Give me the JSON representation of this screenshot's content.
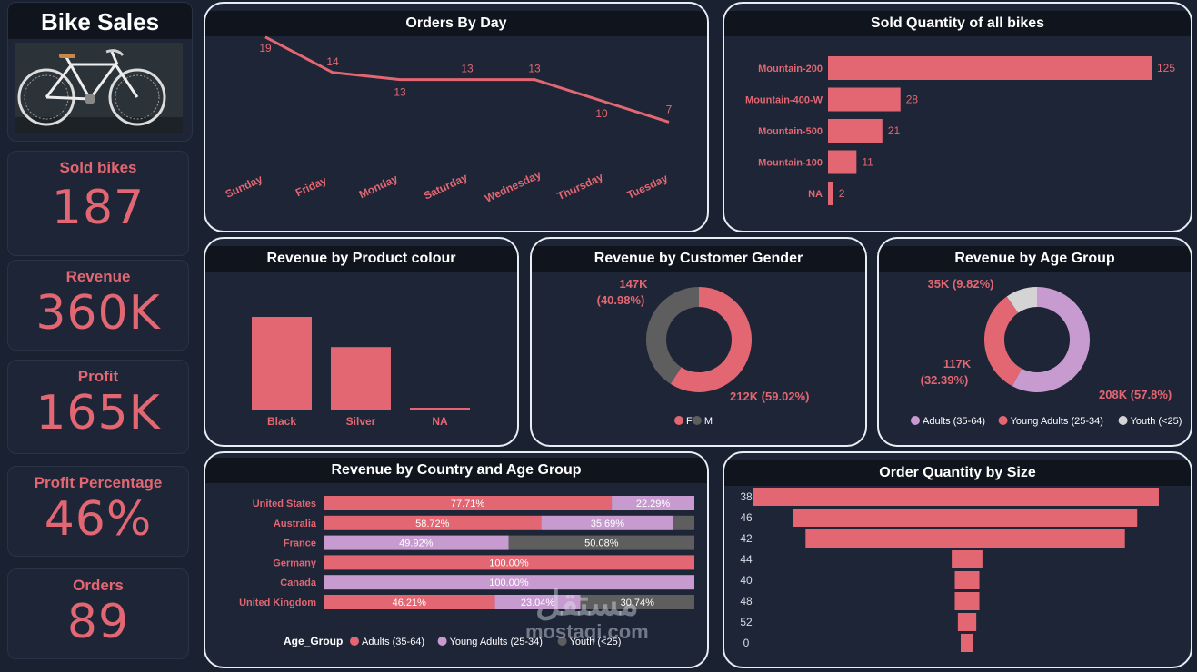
{
  "app": {
    "title": "Bike Sales"
  },
  "colors": {
    "accent": "#e26772",
    "lilac": "#c89bd0",
    "gray": "#5e5e5e",
    "light_gray": "#d4d4d4",
    "panel": "#1d2536"
  },
  "kpis": [
    {
      "label": "Sold bikes",
      "value": "187"
    },
    {
      "label": "Revenue",
      "value": "360K"
    },
    {
      "label": "Profit",
      "value": "165K"
    },
    {
      "label": "Profit Percentage",
      "value": "46%"
    },
    {
      "label": "Orders",
      "value": "89"
    }
  ],
  "watermark": {
    "arabic": "مستقل",
    "latin": "mostaqi.com"
  },
  "chart_data": [
    {
      "id": "orders_by_day",
      "type": "line",
      "title": "Orders By Day",
      "categories": [
        "Sunday",
        "Friday",
        "Monday",
        "Saturday",
        "Wednesday",
        "Thursday",
        "Tuesday"
      ],
      "values": [
        19,
        14,
        13,
        13,
        13,
        10,
        7
      ]
    },
    {
      "id": "sold_quantity",
      "type": "bar",
      "orientation": "horizontal",
      "title": "Sold Quantity of all bikes",
      "categories": [
        "Mountain-200",
        "Mountain-400-W",
        "Mountain-500",
        "Mountain-100",
        "NA"
      ],
      "values": [
        125,
        28,
        21,
        11,
        2
      ]
    },
    {
      "id": "revenue_by_colour",
      "type": "bar",
      "title": "Revenue by Product colour",
      "categories": [
        "Black",
        "Silver",
        "NA"
      ],
      "values": [
        215,
        145,
        2
      ]
    },
    {
      "id": "revenue_by_gender",
      "type": "pie",
      "title": "Revenue by Customer Gender",
      "labels": [
        "F",
        "M"
      ],
      "values": [
        212,
        147
      ],
      "data_labels": [
        "212K (59.02%)",
        "147K (40.98%)"
      ],
      "legend_position": "bottom"
    },
    {
      "id": "revenue_by_age",
      "type": "pie",
      "title": "Revenue by Age Group",
      "labels": [
        "Adults (35-64)",
        "Young Adults (25-34)",
        "Youth (<25)"
      ],
      "values": [
        208,
        117,
        35
      ],
      "data_labels": [
        "208K (57.8%)",
        "117K (32.39%)",
        "35K (9.82%)"
      ],
      "legend_position": "bottom"
    },
    {
      "id": "revenue_by_country",
      "type": "bar",
      "orientation": "horizontal",
      "stacked": "100%",
      "title": "Revenue by Country and Age Group",
      "legend_title": "Age_Group",
      "categories": [
        "United States",
        "Australia",
        "France",
        "Germany",
        "Canada",
        "United Kingdom"
      ],
      "series": [
        {
          "name": "Adults (35-64)",
          "values": [
            77.71,
            58.72,
            0,
            100.0,
            0,
            46.21
          ]
        },
        {
          "name": "Young Adults (25-34)",
          "values": [
            22.29,
            35.69,
            49.92,
            0,
            100.0,
            23.04
          ]
        },
        {
          "name": "Youth (<25)",
          "values": [
            0,
            5.59,
            50.08,
            0,
            0,
            30.74
          ]
        }
      ],
      "segment_labels": [
        [
          "77.71%",
          "22.29%",
          ""
        ],
        [
          "58.72%",
          "35.69%",
          ""
        ],
        [
          "",
          "49.92%",
          "50.08%"
        ],
        [
          "100.00%",
          "",
          ""
        ],
        [
          "",
          "100.00%",
          ""
        ],
        [
          "46.21%",
          "23.04%",
          "30.74%"
        ]
      ],
      "legend_position": "bottom"
    },
    {
      "id": "order_qty_by_size",
      "type": "bar",
      "orientation": "horizontal",
      "subtype": "funnel",
      "title": "Order Quantity by Size",
      "categories": [
        "38",
        "46",
        "42",
        "44",
        "40",
        "48",
        "52",
        "0"
      ],
      "values": [
        33,
        28,
        26,
        2.5,
        2,
        2,
        1.5,
        1
      ]
    }
  ]
}
